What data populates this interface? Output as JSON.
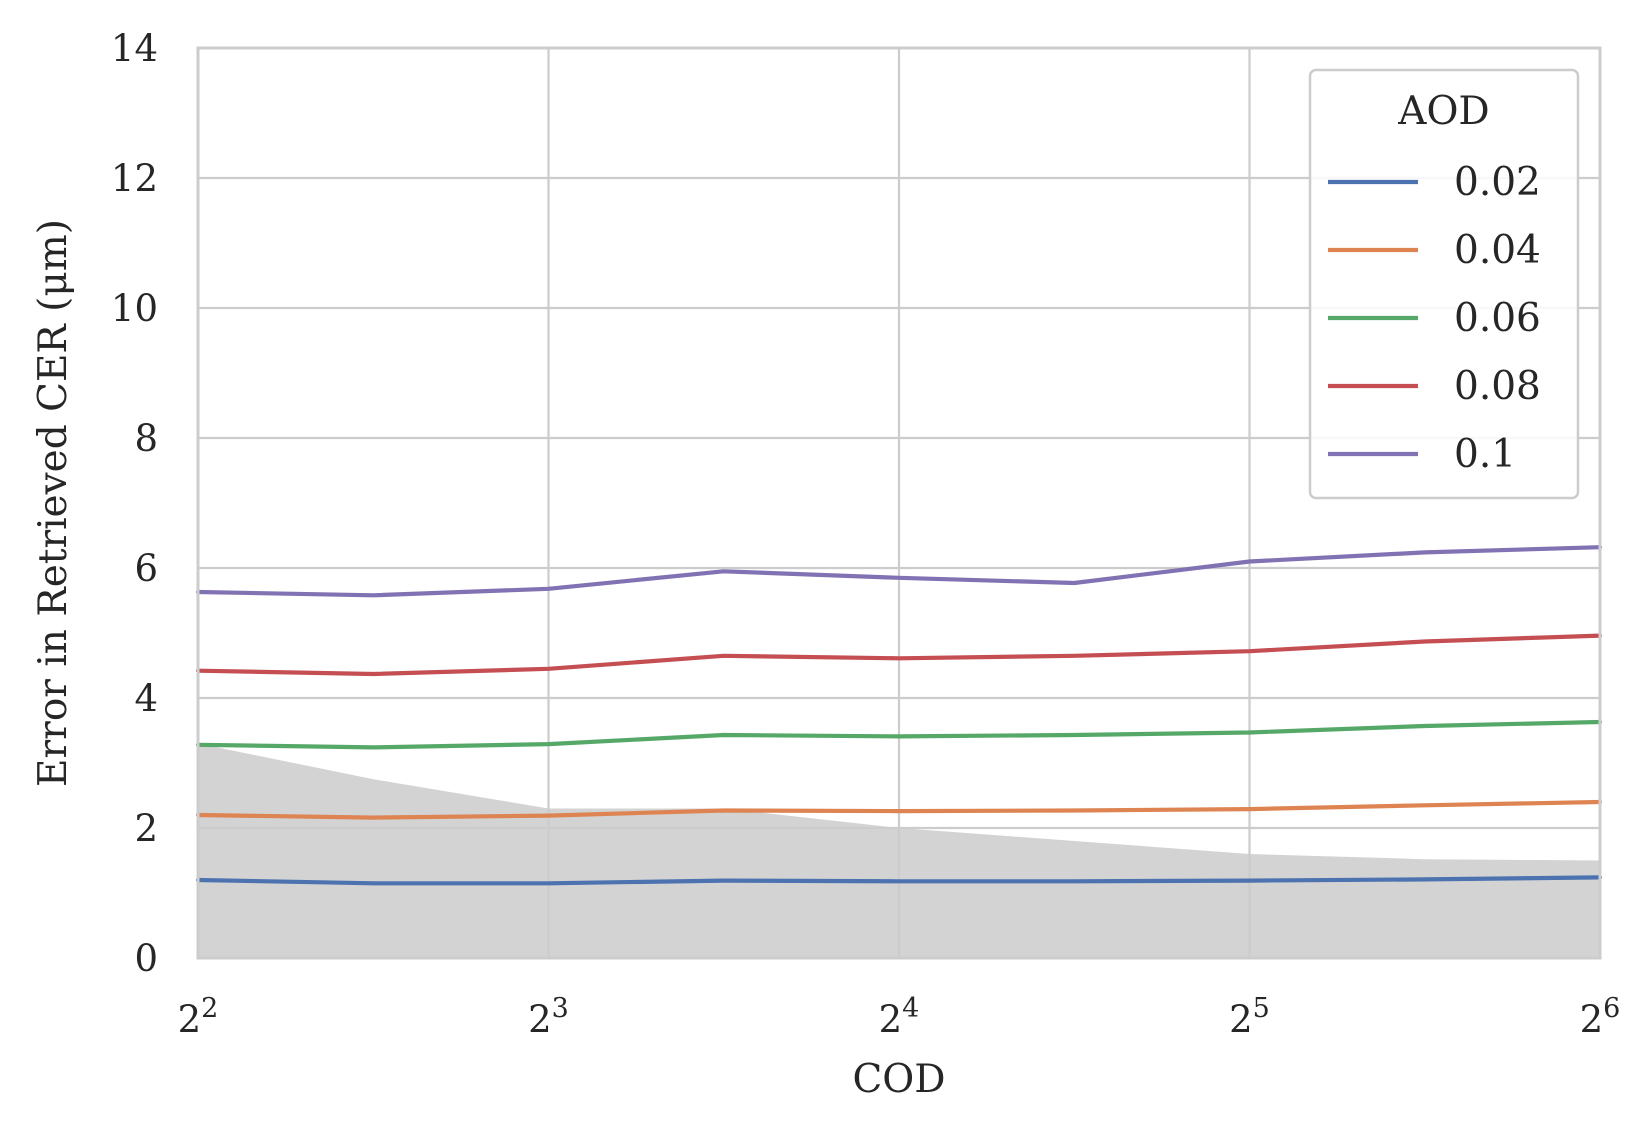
{
  "chart_data": {
    "type": "line",
    "xlabel": "COD",
    "ylabel": "Error in Retrieved CER (μm)",
    "x_scale": "log2",
    "xlim": [
      4,
      64
    ],
    "ylim": [
      0,
      14
    ],
    "grid": true,
    "x_ticks": [
      {
        "value": 4,
        "base": "2",
        "exp": "2"
      },
      {
        "value": 8,
        "base": "2",
        "exp": "3"
      },
      {
        "value": 16,
        "base": "2",
        "exp": "4"
      },
      {
        "value": 32,
        "base": "2",
        "exp": "5"
      },
      {
        "value": 64,
        "base": "2",
        "exp": "6"
      }
    ],
    "y_ticks": [
      0,
      2,
      4,
      6,
      8,
      10,
      12,
      14
    ],
    "x": [
      4,
      5.66,
      8,
      11.31,
      16,
      22.63,
      32,
      45.25,
      64
    ],
    "shaded_region": {
      "color": "#d3d3d3",
      "upper": [
        3.3,
        2.75,
        2.3,
        2.3,
        2.0,
        1.8,
        1.6,
        1.52,
        1.5
      ]
    },
    "legend": {
      "title": "AOD",
      "placement": "top-right"
    },
    "series": [
      {
        "name": "0.02",
        "color": "#4c72b0",
        "values": [
          1.2,
          1.15,
          1.15,
          1.19,
          1.18,
          1.18,
          1.19,
          1.21,
          1.24
        ]
      },
      {
        "name": "0.04",
        "color": "#dd8452",
        "values": [
          2.2,
          2.16,
          2.19,
          2.27,
          2.26,
          2.27,
          2.29,
          2.35,
          2.4
        ]
      },
      {
        "name": "0.06",
        "color": "#55a868",
        "values": [
          3.28,
          3.24,
          3.29,
          3.43,
          3.41,
          3.43,
          3.47,
          3.57,
          3.63
        ]
      },
      {
        "name": "0.08",
        "color": "#c44e52",
        "values": [
          4.42,
          4.37,
          4.45,
          4.65,
          4.61,
          4.65,
          4.72,
          4.87,
          4.96
        ]
      },
      {
        "name": "0.1",
        "color": "#8172b3",
        "values": [
          5.63,
          5.58,
          5.68,
          5.95,
          5.85,
          5.77,
          6.1,
          6.24,
          6.32
        ]
      }
    ]
  }
}
